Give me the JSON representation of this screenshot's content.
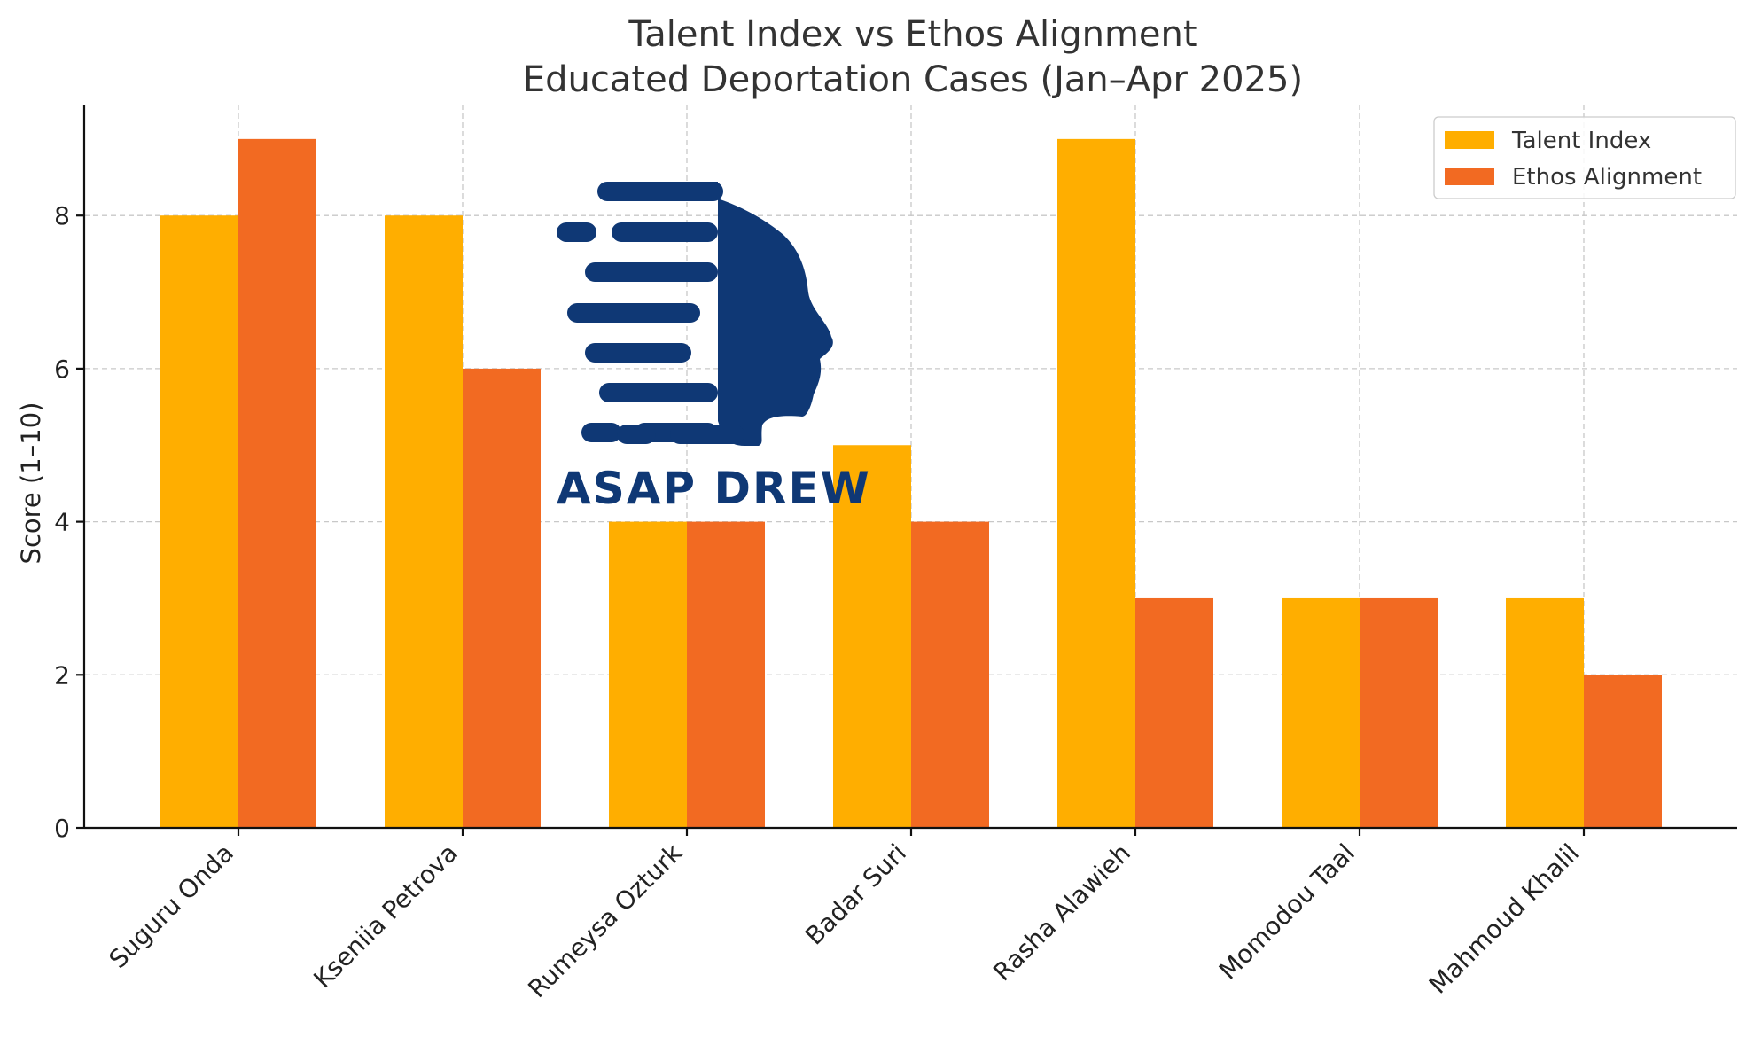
{
  "chart_data": {
    "type": "bar",
    "title": "Talent Index vs Ethos Alignment",
    "subtitle": "Educated Deportation Cases (Jan–Apr 2025)",
    "xlabel": "",
    "ylabel": "Score (1–10)",
    "categories": [
      "Suguru Onda",
      "Kseniia Petrova",
      "Rumeysa Ozturk",
      "Badar Suri",
      "Rasha Alawieh",
      "Momodou Taal",
      "Mahmoud Khalil"
    ],
    "series": [
      {
        "name": "Talent Index",
        "values": [
          8,
          8,
          4,
          5,
          9,
          3,
          3
        ],
        "color": "#ffae00"
      },
      {
        "name": "Ethos Alignment",
        "values": [
          9,
          6,
          4,
          4,
          3,
          3,
          2
        ],
        "color": "#f26a22"
      }
    ],
    "ylim": [
      0,
      9.45
    ],
    "yticks": [
      0,
      2,
      4,
      6,
      8
    ],
    "grid": true,
    "legend_position": "top-right"
  },
  "watermark": {
    "text": "ASAP DREW",
    "color": "#0f3875",
    "icon": "head-profile-icon"
  }
}
